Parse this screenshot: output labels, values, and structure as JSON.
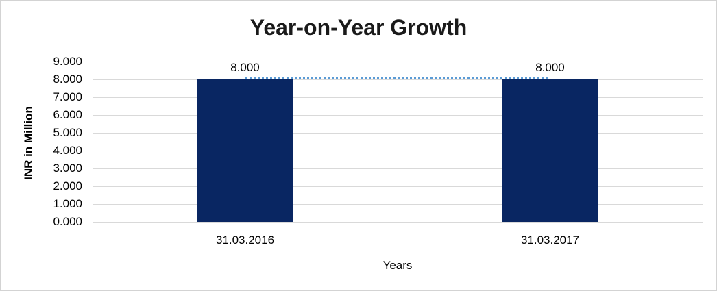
{
  "chart_data": {
    "type": "bar",
    "title": "Year-on-Year Growth",
    "categories": [
      "31.03.2016",
      "31.03.2017"
    ],
    "values": [
      8,
      8
    ],
    "data_labels": [
      "8.000",
      "8.000"
    ],
    "xlabel": "Years",
    "ylabel": "INR in Million",
    "ylim": [
      0,
      9
    ],
    "ytick_step": 1,
    "ytick_labels": [
      "0.000",
      "1.000",
      "2.000",
      "3.000",
      "4.000",
      "5.000",
      "6.000",
      "7.000",
      "8.000",
      "9.000"
    ],
    "grid": true,
    "legend_position": "none",
    "trendline": {
      "style": "dotted",
      "from_value": 8,
      "to_value": 8
    },
    "colors": {
      "bar": "#092662",
      "gridline": "#d9d9d9",
      "axis_line": "#d9d9d9",
      "trendline": "#5b9bd5",
      "text": "#000000",
      "title_text": "#1a1a1a",
      "frame_border": "#d3d3d3",
      "background": "#ffffff"
    }
  }
}
